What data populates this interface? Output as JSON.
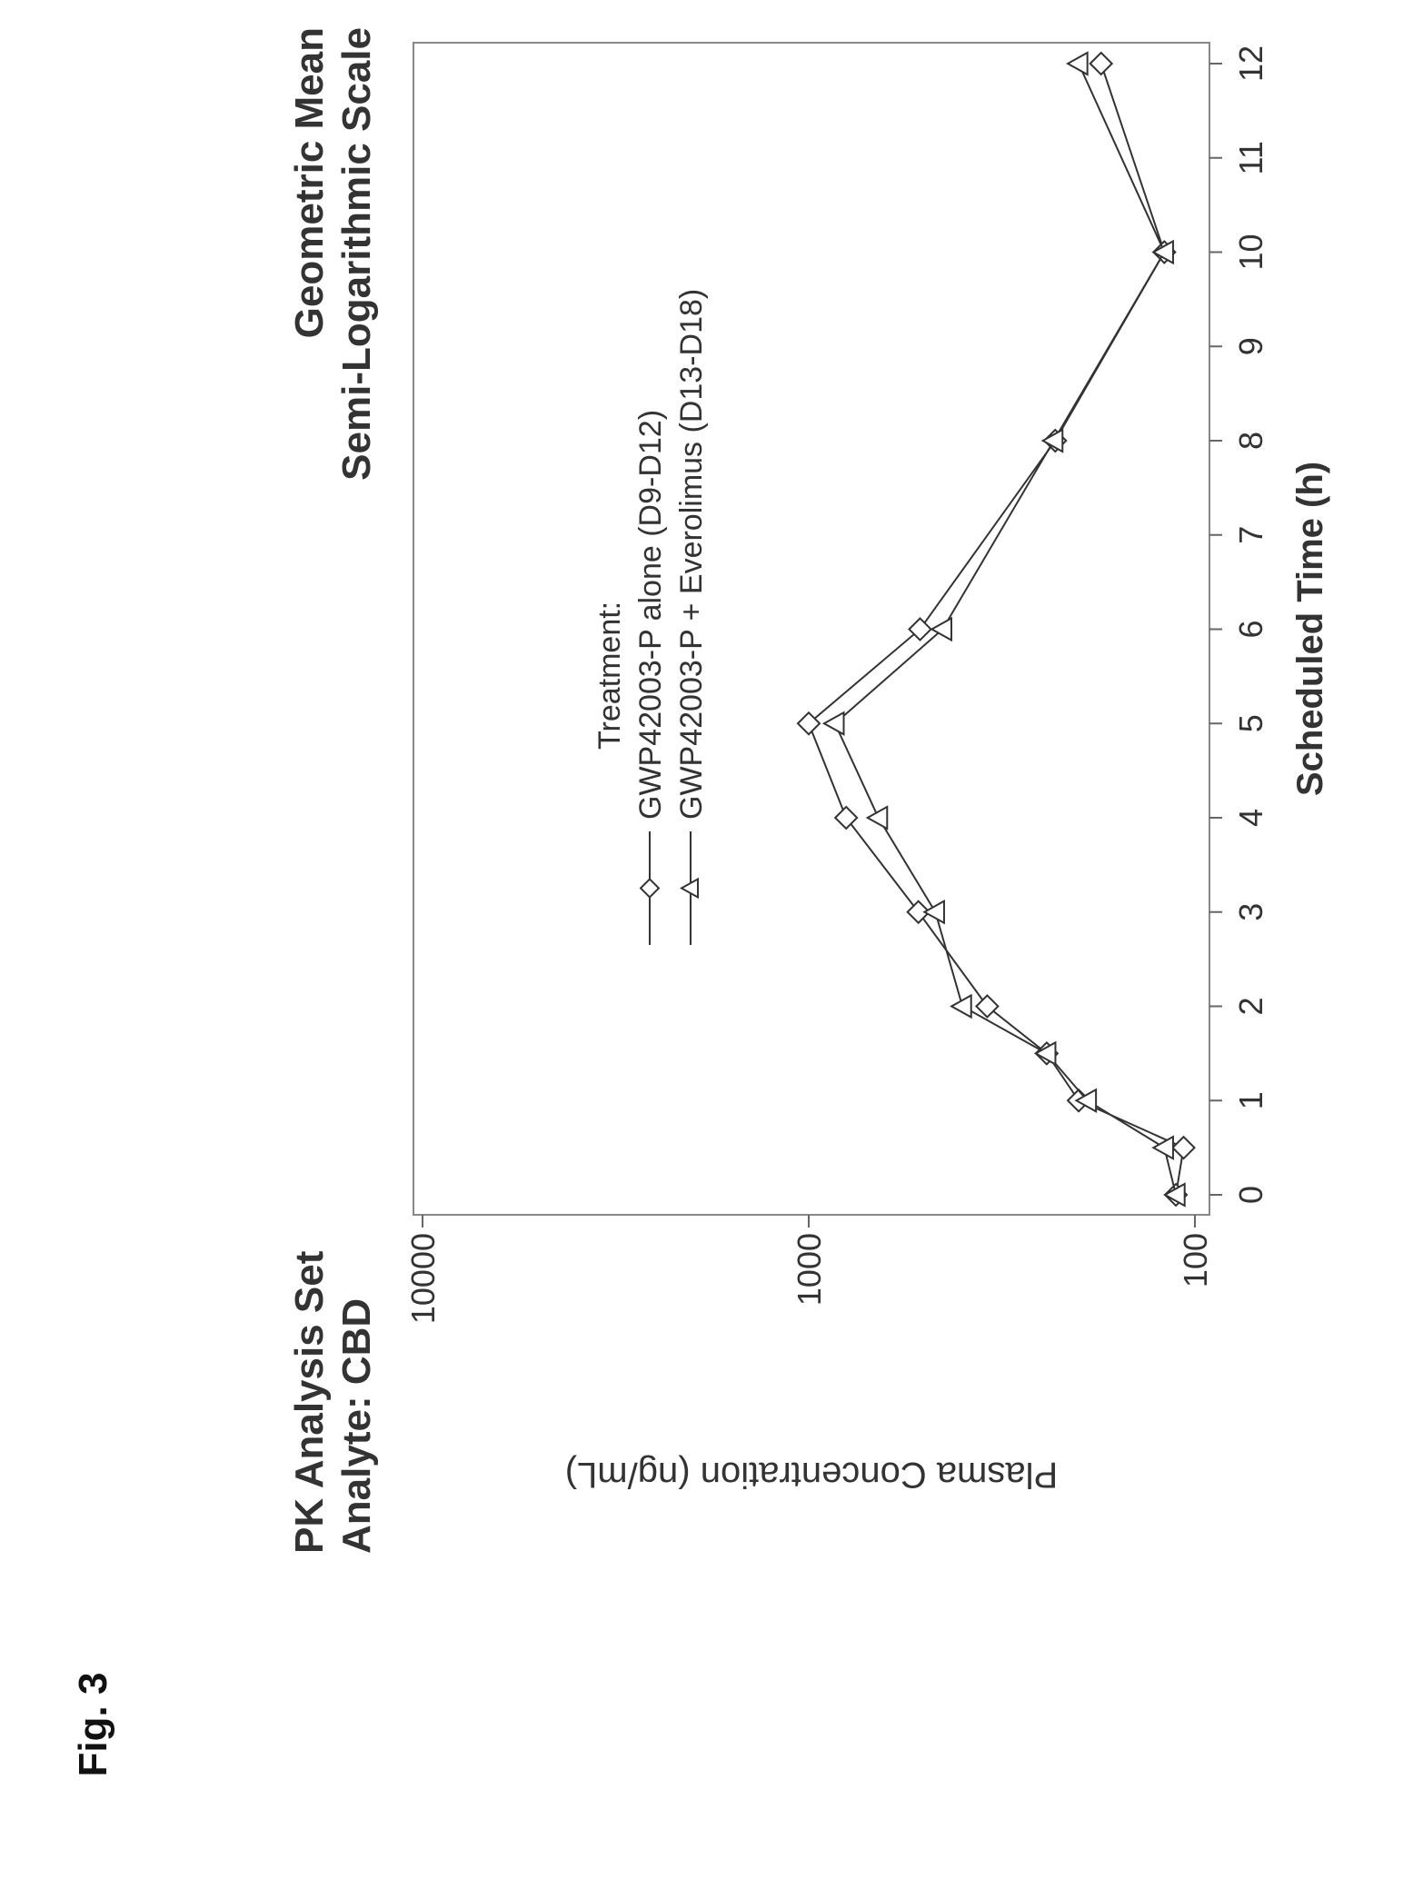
{
  "figure": {
    "label": "Fig. 3"
  },
  "chart_data": {
    "type": "line",
    "title_left": [
      "PK Analysis Set",
      "Analyte: CBD"
    ],
    "title_right": [
      "Geometric Mean",
      "Semi-Logarithmic Scale"
    ],
    "xlabel": "Scheduled Time (h)",
    "ylabel": "Plasma Concentration (ng/mL)",
    "xlim": [
      0,
      12
    ],
    "ylim": [
      100,
      10000
    ],
    "yscale": "log",
    "xticks": [
      0,
      1,
      2,
      3,
      4,
      5,
      6,
      7,
      8,
      9,
      10,
      11,
      12
    ],
    "yticks": [
      100,
      1000,
      10000
    ],
    "legend": {
      "title": "Treatment:",
      "placement": "top"
    },
    "series": [
      {
        "name": "GWP42003-P alone (D9-D12)",
        "marker": "diamond",
        "x": [
          0,
          0.5,
          1,
          1.5,
          2,
          3,
          4,
          5,
          6,
          8,
          10,
          12
        ],
        "y": [
          112,
          107,
          200,
          242,
          345,
          520,
          800,
          1000,
          515,
          230,
          120,
          175
        ]
      },
      {
        "name": "GWP42003-P + Everolimus (D13-D18)",
        "marker": "triangle",
        "x": [
          0,
          0.5,
          1,
          1.5,
          2,
          3,
          4,
          5,
          6,
          8,
          10,
          12
        ],
        "y": [
          112,
          120,
          190,
          242,
          400,
          470,
          660,
          855,
          450,
          232,
          120,
          200
        ]
      }
    ]
  }
}
